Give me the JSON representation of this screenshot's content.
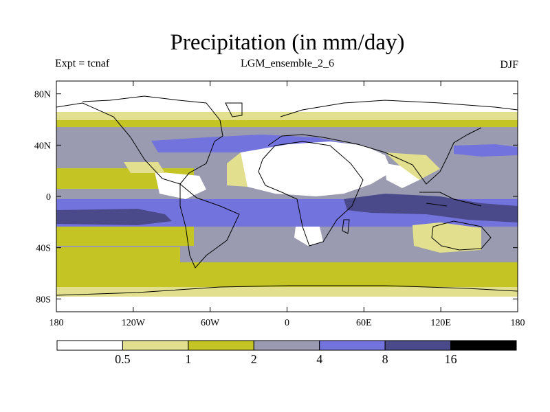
{
  "title": "Precipitation (in mm/day)",
  "subtitle_left": "Expt = tcnaf",
  "subtitle_center": "LGM_ensemble_2_6",
  "subtitle_right": "DJF",
  "colors": {
    "c0": "#ffffff",
    "c1": "#e2e08e",
    "c2": "#c4c425",
    "c3": "#9a9bb0",
    "c4": "#7373de",
    "c5": "#4a4a8a",
    "c6": "#000000"
  },
  "chart_data": {
    "type": "heatmap",
    "variable": "Precipitation",
    "units": "mm/day",
    "season": "DJF",
    "experiment": "tcnaf",
    "run": "LGM_ensemble_2_6",
    "lon_range": [
      -180,
      180
    ],
    "lat_range": [
      -90,
      90
    ],
    "x_ticks": [
      {
        "value": -180,
        "label": "180"
      },
      {
        "value": -120,
        "label": "120W"
      },
      {
        "value": -60,
        "label": "60W"
      },
      {
        "value": 0,
        "label": "0"
      },
      {
        "value": 60,
        "label": "60E"
      },
      {
        "value": 120,
        "label": "120E"
      },
      {
        "value": 180,
        "label": "180"
      }
    ],
    "y_ticks": [
      {
        "value": 80,
        "label": "80N"
      },
      {
        "value": 40,
        "label": "40N"
      },
      {
        "value": 0,
        "label": "0"
      },
      {
        "value": -40,
        "label": "40S"
      },
      {
        "value": -80,
        "label": "80S"
      }
    ],
    "colorbar": {
      "levels": [
        0.5,
        1,
        2,
        4,
        8,
        16
      ],
      "labels": [
        "0.5",
        "1",
        "2",
        "4",
        "8",
        "16"
      ],
      "bins": 7
    }
  }
}
